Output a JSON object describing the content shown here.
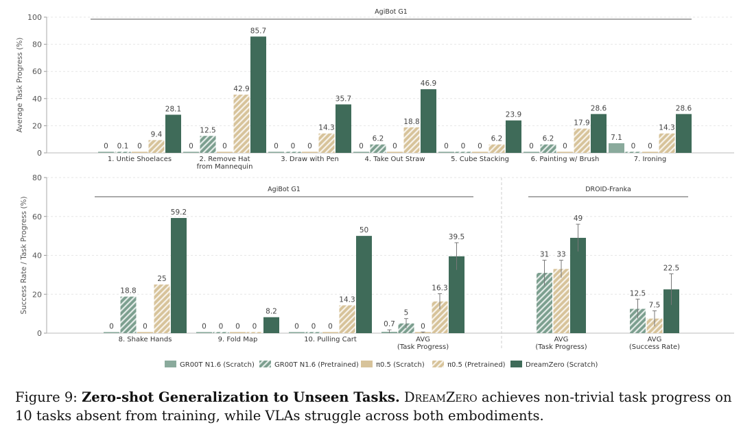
{
  "colors": {
    "groot_scratch": "#8aaa9c",
    "groot_pretrained": "#7c9f8f",
    "pi_scratch": "#d7c39a",
    "pi_pretrained": "#d7c39a",
    "dreamzero": "#3f6b59",
    "grid": "#e6e6e6",
    "axis_text": "#555555"
  },
  "legend": {
    "items": [
      {
        "label": "GR00T N1.6 (Scratch)",
        "style": "solid",
        "color": "#8aaa9c"
      },
      {
        "label": "GR00T N1.6 (Pretrained)",
        "style": "hatch",
        "color": "#7c9f8f"
      },
      {
        "label": "π0.5 (Scratch)",
        "style": "solid",
        "color": "#d7c39a"
      },
      {
        "label": "π0.5 (Pretrained)",
        "style": "hatch",
        "color": "#d7c39a"
      },
      {
        "label": "DreamZero (Scratch)",
        "style": "solid",
        "color": "#3f6b59"
      }
    ]
  },
  "caption": {
    "figure_label": "Figure 9:",
    "bold_title": "Zero-shot Generalization to Unseen Tasks.",
    "model_name": "DreamZero",
    "text_after_name": " achieves non-trivial task progress on 10 tasks absent from training, while VLAs struggle across both embodiments."
  },
  "chart_data": [
    {
      "type": "bar",
      "title": "AgiBot G1",
      "xlabel": "",
      "ylabel": "Average Task Progress (%)",
      "ylim": [
        0,
        100
      ],
      "yticks": [
        "0",
        "20",
        "40",
        "60",
        "80",
        "100"
      ],
      "grid": true,
      "categories": [
        [
          "1. Untie Shoelaces"
        ],
        [
          "2. Remove Hat",
          "from Mannequin"
        ],
        [
          "3. Draw with Pen"
        ],
        [
          "4. Take Out Straw"
        ],
        [
          "5. Cube Stacking"
        ],
        [
          "6. Painting w/ Brush"
        ],
        [
          "7. Ironing"
        ]
      ],
      "series": [
        {
          "name": "GR00T N1.6 (Scratch)",
          "values": [
            0,
            0,
            0,
            0,
            0,
            0,
            7.1
          ],
          "labels": [
            "0",
            "0",
            "0",
            "0",
            "0",
            "0",
            "7.1"
          ]
        },
        {
          "name": "GR00T N1.6 (Pretrained)",
          "values": [
            0.1,
            12.5,
            0,
            6.2,
            0,
            6.2,
            0
          ],
          "labels": [
            "0.1",
            "12.5",
            "0",
            "6.2",
            "0",
            "6.2",
            "0"
          ]
        },
        {
          "name": "π0.5 (Scratch)",
          "values": [
            0,
            0,
            0,
            0,
            0,
            0,
            0
          ],
          "labels": [
            "0",
            "0",
            "0",
            "0",
            "0",
            "0",
            "0"
          ]
        },
        {
          "name": "π0.5 (Pretrained)",
          "values": [
            9.4,
            42.9,
            14.3,
            18.8,
            6.2,
            17.9,
            14.3
          ],
          "labels": [
            "9.4",
            "42.9",
            "14.3",
            "18.8",
            "6.2",
            "17.9",
            "14.3"
          ]
        },
        {
          "name": "DreamZero (Scratch)",
          "values": [
            28.1,
            85.7,
            35.7,
            46.9,
            23.9,
            28.6,
            28.6
          ],
          "labels": [
            "28.1",
            "85.7",
            "35.7",
            "46.9",
            "23.9",
            "28.6",
            "28.6"
          ]
        }
      ]
    },
    {
      "type": "bar",
      "title": "AgiBot G1",
      "xlabel": "",
      "ylabel": "Success Rate / Task Progress (%)",
      "ylim": [
        0,
        80
      ],
      "yticks": [
        "0",
        "20",
        "40",
        "60",
        "80"
      ],
      "grid": true,
      "categories": [
        [
          "8. Shake Hands"
        ],
        [
          "9. Fold Map"
        ],
        [
          "10. Pulling Cart"
        ],
        [
          "AVG",
          "(Task Progress)"
        ]
      ],
      "series": [
        {
          "name": "GR00T N1.6 (Scratch)",
          "values": [
            0,
            0,
            0,
            0.7
          ],
          "labels": [
            "0",
            "0",
            "0",
            "0.7"
          ],
          "errors": [
            null,
            null,
            null,
            1.0
          ]
        },
        {
          "name": "GR00T N1.6 (Pretrained)",
          "values": [
            18.8,
            0,
            0,
            5
          ],
          "labels": [
            "18.8",
            "0",
            "0",
            "5"
          ],
          "errors": [
            null,
            null,
            null,
            2.5
          ]
        },
        {
          "name": "π0.5 (Scratch)",
          "values": [
            0,
            0,
            0,
            0
          ],
          "labels": [
            "0",
            "0",
            "0",
            "0"
          ],
          "errors": [
            null,
            null,
            null,
            0.6
          ]
        },
        {
          "name": "π0.5 (Pretrained)",
          "values": [
            25,
            0,
            14.3,
            16.3
          ],
          "labels": [
            "25",
            "0",
            "14.3",
            "16.3"
          ],
          "errors": [
            null,
            null,
            null,
            4.0
          ]
        },
        {
          "name": "DreamZero (Scratch)",
          "values": [
            59.2,
            8.2,
            50,
            39.5
          ],
          "labels": [
            "59.2",
            "8.2",
            "50",
            "39.5"
          ],
          "errors": [
            null,
            null,
            null,
            7.0
          ]
        }
      ]
    },
    {
      "type": "bar",
      "title": "DROID-Franka",
      "xlabel": "",
      "ylabel": "",
      "ylim": [
        0,
        80
      ],
      "grid": true,
      "categories": [
        [
          "AVG",
          "(Task Progress)"
        ],
        [
          "AVG",
          "(Success Rate)"
        ]
      ],
      "series": [
        {
          "name": "GR00T N1.6 (Pretrained)",
          "values": [
            31,
            12.5
          ],
          "labels": [
            "31",
            "12.5"
          ],
          "errors": [
            6.5,
            5.0
          ]
        },
        {
          "name": "π0.5 (Pretrained)",
          "values": [
            33,
            7.5
          ],
          "labels": [
            "33",
            "7.5"
          ],
          "errors": [
            4.5,
            4.0
          ]
        },
        {
          "name": "DreamZero (Scratch)",
          "values": [
            49,
            22.5
          ],
          "labels": [
            "49",
            "22.5"
          ],
          "errors": [
            7.0,
            8.0
          ]
        }
      ]
    }
  ]
}
